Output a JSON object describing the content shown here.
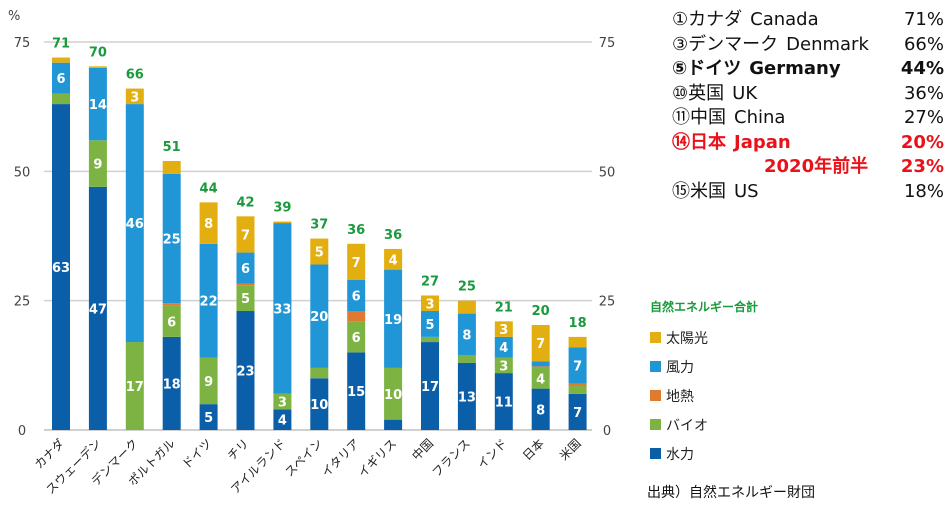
{
  "chart_data": {
    "type": "bar",
    "stacked": true,
    "ylabel": "%",
    "ylim": [
      0,
      75
    ],
    "yticks": [
      0,
      25,
      50,
      75
    ],
    "grid": true,
    "categories": [
      "カナダ",
      "スウェーデン",
      "デンマーク",
      "ポルトガル",
      "ドイツ",
      "チリ",
      "アイルランド",
      "スペイン",
      "イタリア",
      "イギリス",
      "中国",
      "フランス",
      "インド",
      "日本",
      "米国"
    ],
    "totals": [
      71,
      70,
      66,
      51,
      44,
      42,
      39,
      37,
      36,
      36,
      27,
      25,
      21,
      20,
      18
    ],
    "series": [
      {
        "name": "水力",
        "color": "#0b5fa8",
        "values": [
          63,
          47,
          0,
          18,
          5,
          23,
          4,
          10,
          15,
          2,
          17,
          13,
          11,
          8,
          7
        ]
      },
      {
        "name": "バイオ",
        "color": "#7cb342",
        "values": [
          2,
          9,
          17,
          6,
          9,
          5,
          3,
          2,
          6,
          10,
          1,
          1.5,
          3,
          4,
          1.5
        ]
      },
      {
        "name": "地熱",
        "color": "#e07a30",
        "values": [
          0,
          0,
          0,
          0.5,
          0,
          0.3,
          0,
          0,
          2,
          0,
          0,
          0,
          0,
          0.3,
          0.5
        ]
      },
      {
        "name": "風力",
        "color": "#2196d6",
        "values": [
          6,
          14,
          46,
          25,
          22,
          6,
          33,
          20,
          6,
          19,
          5,
          8,
          4,
          1,
          7
        ]
      },
      {
        "name": "太陽光",
        "color": "#e3ae0f",
        "values": [
          1,
          0.3,
          3,
          2.5,
          8,
          7,
          0.3,
          5,
          7,
          4,
          3,
          2.5,
          3,
          7,
          2
        ]
      }
    ],
    "legend_title": "自然エネルギー合計",
    "legend_order": [
      "太陽光",
      "風力",
      "地熱",
      "バイオ",
      "水力"
    ],
    "total_label_color": "#1a9a3c"
  },
  "ranking": [
    {
      "jp": "①カナダ",
      "en": "Canada",
      "value": "71%",
      "style": "normal"
    },
    {
      "jp": "③デンマーク",
      "en": "Denmark",
      "value": "66%",
      "style": "normal"
    },
    {
      "jp": "⑤ドイツ",
      "en": "Germany",
      "value": "44%",
      "style": "bold"
    },
    {
      "jp": "⑩英国",
      "en": "UK",
      "value": "36%",
      "style": "normal"
    },
    {
      "jp": "⑪中国",
      "en": "China",
      "value": "27%",
      "style": "normal"
    },
    {
      "jp": "⑭日本",
      "en": "Japan",
      "value": "20%",
      "style": "red"
    },
    {
      "jp": "",
      "en": "2020年前半",
      "value": "23%",
      "style": "red"
    },
    {
      "jp": "⑮米国",
      "en": "US",
      "value": "18%",
      "style": "normal"
    }
  ],
  "source": "出典）自然エネルギー財団"
}
